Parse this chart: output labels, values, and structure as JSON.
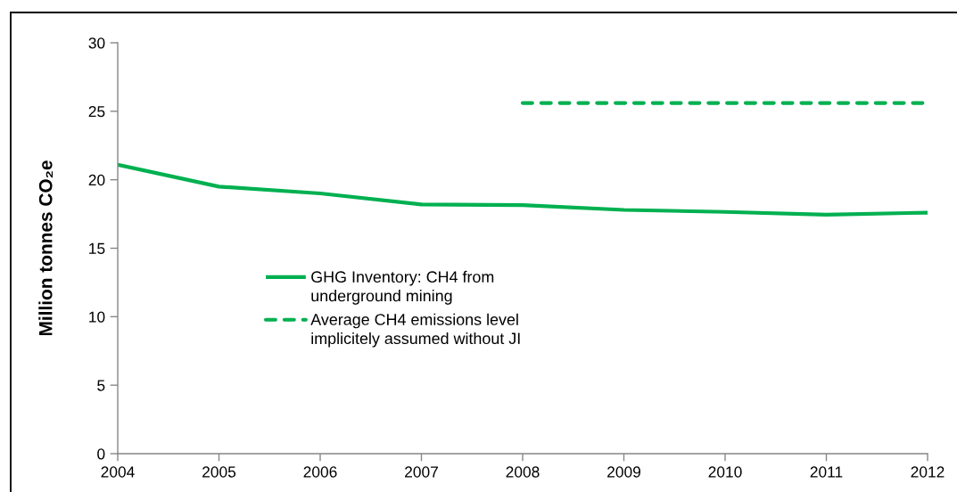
{
  "chart_data": {
    "type": "line",
    "x": [
      2004,
      2005,
      2006,
      2007,
      2008,
      2009,
      2010,
      2011,
      2012
    ],
    "series": [
      {
        "name": "GHG Inventory: CH4 from\nunderground mining",
        "color": "#00b050",
        "line_style": "solid",
        "values": [
          21.1,
          19.5,
          19.0,
          18.2,
          18.15,
          17.8,
          17.65,
          17.45,
          17.6
        ]
      },
      {
        "name": "Average CH4 emissions level\nimplicitely assumed without JI",
        "color": "#00b050",
        "line_style": "dashed",
        "x": [
          2008,
          2012
        ],
        "values": [
          25.6,
          25.6
        ]
      }
    ],
    "ylabel": "Million tonnes CO₂e",
    "xlim": [
      2004,
      2012
    ],
    "xticks": [
      2004,
      2005,
      2006,
      2007,
      2008,
      2009,
      2010,
      2011,
      2012
    ],
    "ylim": [
      0,
      30
    ],
    "yticks": [
      0,
      5,
      10,
      15,
      20,
      25,
      30
    ],
    "grid": false,
    "legend": "center left"
  }
}
